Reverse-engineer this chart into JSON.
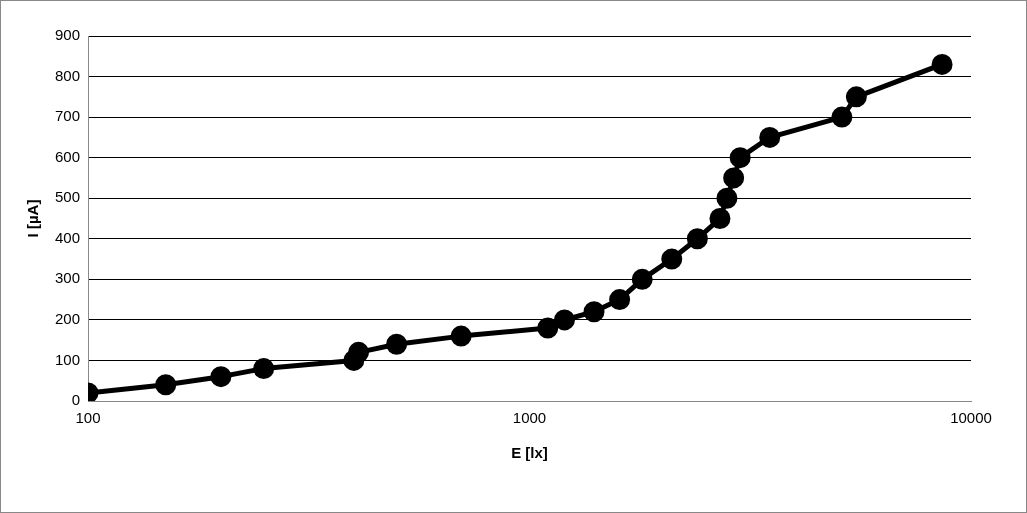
{
  "chart_data": {
    "type": "line",
    "xlabel": "E [lx]",
    "ylabel": "I [µA]",
    "log": "x",
    "x": [
      100,
      150,
      200,
      250,
      400,
      410,
      500,
      700,
      1100,
      1200,
      1400,
      1600,
      1800,
      2100,
      2400,
      2700,
      2800,
      2900,
      3000,
      3500,
      5100,
      5500,
      8600
    ],
    "series": [
      {
        "color": "#000000",
        "values": [
          20,
          40,
          60,
          80,
          100,
          120,
          140,
          160,
          180,
          200,
          220,
          250,
          300,
          350,
          400,
          450,
          500,
          550,
          600,
          650,
          700,
          750,
          830
        ]
      }
    ],
    "xlim": [
      100,
      10000
    ],
    "xticks": [
      100,
      1000,
      10000
    ],
    "ylim": [
      0,
      900
    ],
    "yticks": [
      0,
      100,
      200,
      300,
      400,
      500,
      600,
      700,
      800,
      900
    ],
    "grid": "y",
    "legend": false,
    "marker": "circle",
    "line_style": "solid"
  }
}
